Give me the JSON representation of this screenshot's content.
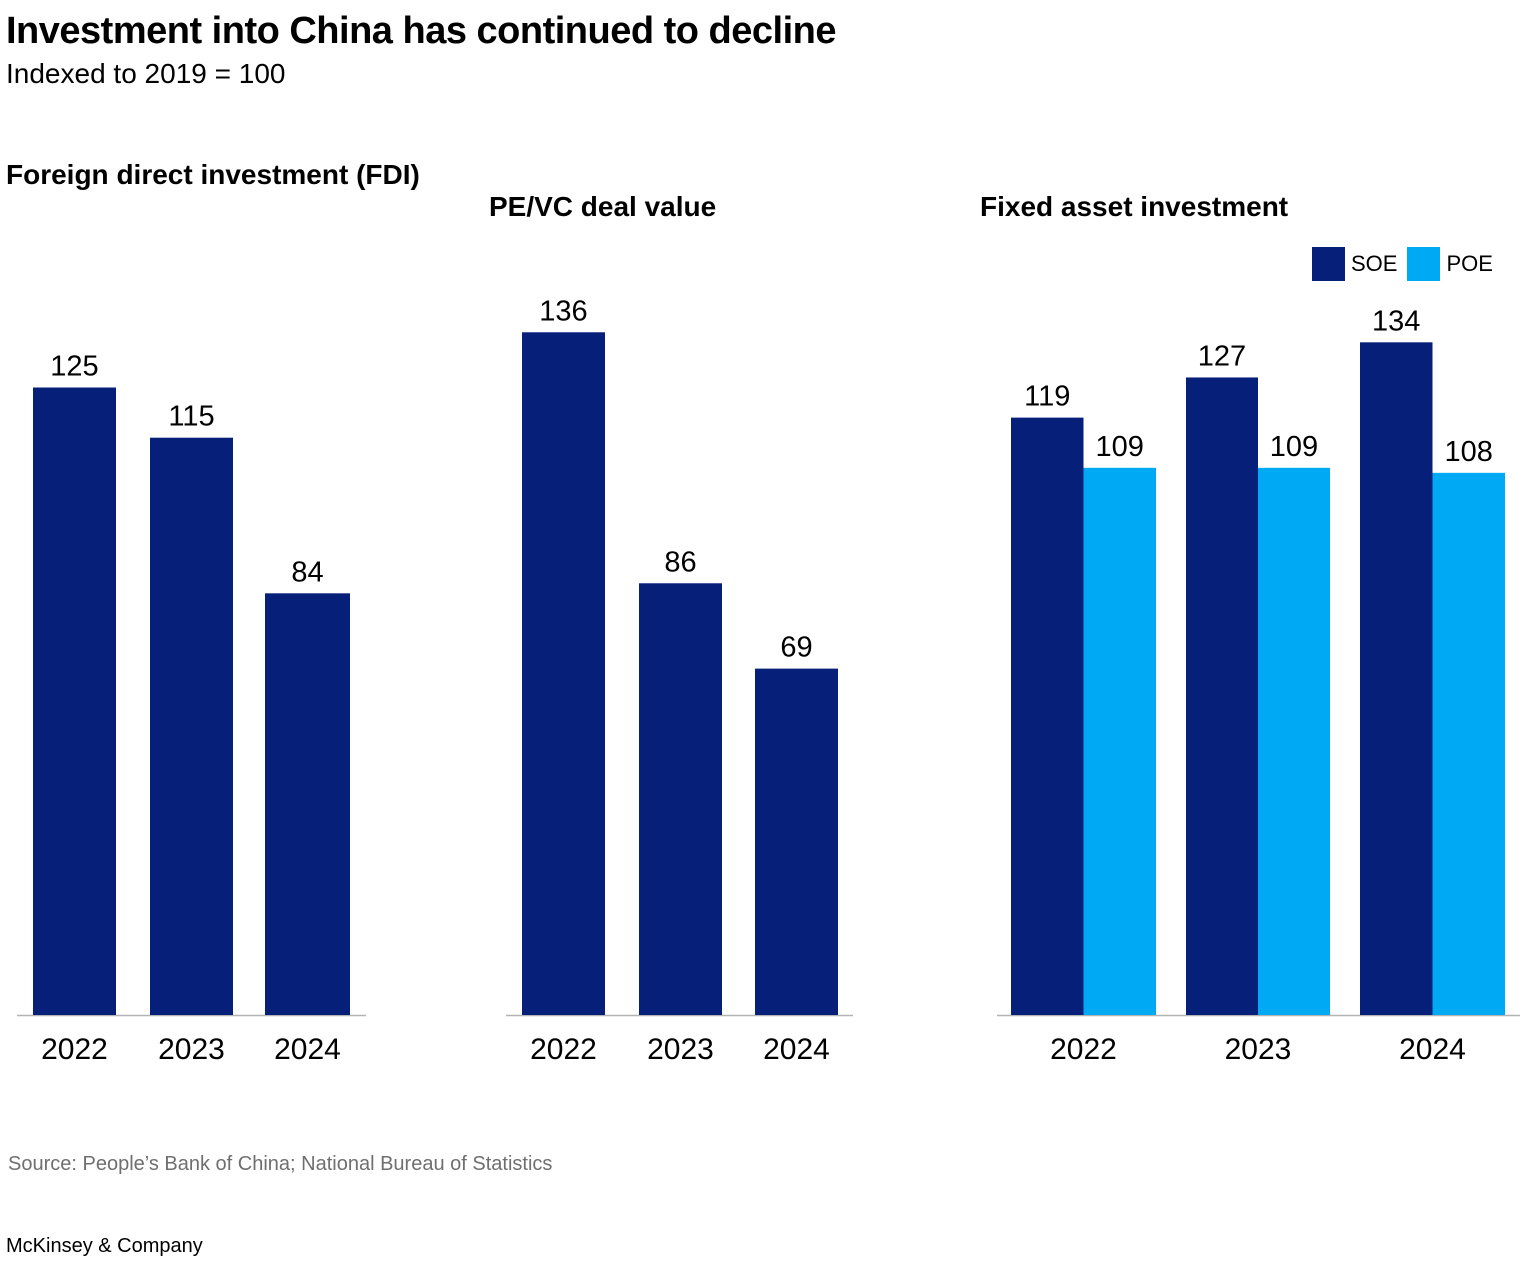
{
  "header": {
    "title": "Investment into China has continued to decline",
    "subtitle": "Indexed to 2019 = 100"
  },
  "colors": {
    "soe": "#061f79",
    "poe": "#00a9f4",
    "axis": "#b3b3b3",
    "text": "#000000",
    "source_text": "#6f6f6f"
  },
  "chart_data": [
    {
      "type": "bar",
      "title": "Foreign direct  investment (FDI)",
      "categories": [
        "2022",
        "2023",
        "2024"
      ],
      "values": [
        125,
        115,
        84
      ],
      "value_labels": [
        "125",
        "115",
        "84"
      ],
      "xlabel": "",
      "ylabel": "",
      "ylim": [
        0,
        140
      ],
      "grid": false
    },
    {
      "type": "bar",
      "title": "PE/VC deal value",
      "categories": [
        "2022",
        "2023",
        "2024"
      ],
      "values": [
        136,
        86,
        69
      ],
      "value_labels": [
        "136",
        "86",
        "69"
      ],
      "xlabel": "",
      "ylabel": "",
      "ylim": [
        0,
        140
      ],
      "grid": false
    },
    {
      "type": "bar",
      "title": "Fixed asset investment",
      "categories": [
        "2022",
        "2023",
        "2024"
      ],
      "series": [
        {
          "name": "SOE",
          "values": [
            119,
            127,
            134
          ],
          "value_labels": [
            "119",
            "127",
            "134"
          ]
        },
        {
          "name": "POE",
          "values": [
            109,
            109,
            108
          ],
          "value_labels": [
            "109",
            "109",
            "108"
          ]
        }
      ],
      "legend": "top-right",
      "xlabel": "",
      "ylabel": "",
      "ylim": [
        0,
        140
      ],
      "grid": false
    }
  ],
  "footer": {
    "source": "Source: People’s Bank of China; National Bureau of Statistics",
    "brand": "McKinsey & Company"
  }
}
